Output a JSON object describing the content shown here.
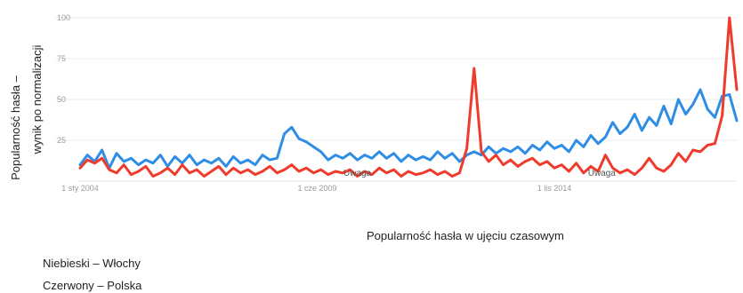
{
  "chart_data": {
    "type": "line",
    "title": "",
    "xlabel": "Popularność hasła w ujęciu czasowym",
    "ylabel_lines": [
      "Popularność hasła –",
      "wynik po normalizacji"
    ],
    "ylim": [
      0,
      100
    ],
    "yticks": [
      "100",
      "75",
      "50",
      "25"
    ],
    "x_range": [
      "2004-01",
      "2019-01"
    ],
    "xticks": [
      {
        "date": "2004-01",
        "label": "1 sty 2004"
      },
      {
        "date": "2009-06",
        "label": "1 cze 2009"
      },
      {
        "date": "2014-11",
        "label": "1 lis 2014"
      }
    ],
    "grid": true,
    "annotations": [
      {
        "date": "2010-05",
        "label": "Uwaga"
      },
      {
        "date": "2015-12",
        "label": "Uwaga"
      }
    ],
    "series": [
      {
        "name": "Włochy",
        "color": "#2f8de4",
        "points": [
          [
            "2004-01",
            10
          ],
          [
            "2004-03",
            16
          ],
          [
            "2004-05",
            12
          ],
          [
            "2004-07",
            19
          ],
          [
            "2004-09",
            8
          ],
          [
            "2004-11",
            17
          ],
          [
            "2005-01",
            12
          ],
          [
            "2005-03",
            14
          ],
          [
            "2005-05",
            10
          ],
          [
            "2005-07",
            13
          ],
          [
            "2005-09",
            11
          ],
          [
            "2005-11",
            16
          ],
          [
            "2006-01",
            9
          ],
          [
            "2006-03",
            15
          ],
          [
            "2006-05",
            11
          ],
          [
            "2006-07",
            16
          ],
          [
            "2006-09",
            10
          ],
          [
            "2006-11",
            13
          ],
          [
            "2007-01",
            11
          ],
          [
            "2007-03",
            14
          ],
          [
            "2007-05",
            9
          ],
          [
            "2007-07",
            15
          ],
          [
            "2007-09",
            11
          ],
          [
            "2007-11",
            13
          ],
          [
            "2008-01",
            10
          ],
          [
            "2008-03",
            16
          ],
          [
            "2008-05",
            13
          ],
          [
            "2008-07",
            14
          ],
          [
            "2008-09",
            29
          ],
          [
            "2008-11",
            33
          ],
          [
            "2009-01",
            26
          ],
          [
            "2009-03",
            24
          ],
          [
            "2009-05",
            21
          ],
          [
            "2009-07",
            18
          ],
          [
            "2009-09",
            13
          ],
          [
            "2009-11",
            16
          ],
          [
            "2010-01",
            14
          ],
          [
            "2010-03",
            17
          ],
          [
            "2010-05",
            13
          ],
          [
            "2010-07",
            16
          ],
          [
            "2010-09",
            14
          ],
          [
            "2010-11",
            18
          ],
          [
            "2011-01",
            14
          ],
          [
            "2011-03",
            17
          ],
          [
            "2011-05",
            12
          ],
          [
            "2011-07",
            16
          ],
          [
            "2011-09",
            13
          ],
          [
            "2011-11",
            15
          ],
          [
            "2012-01",
            13
          ],
          [
            "2012-03",
            18
          ],
          [
            "2012-05",
            14
          ],
          [
            "2012-07",
            17
          ],
          [
            "2012-09",
            12
          ],
          [
            "2012-11",
            16
          ],
          [
            "2013-01",
            18
          ],
          [
            "2013-03",
            16
          ],
          [
            "2013-05",
            21
          ],
          [
            "2013-07",
            17
          ],
          [
            "2013-09",
            20
          ],
          [
            "2013-11",
            18
          ],
          [
            "2014-01",
            21
          ],
          [
            "2014-03",
            17
          ],
          [
            "2014-05",
            22
          ],
          [
            "2014-07",
            19
          ],
          [
            "2014-09",
            24
          ],
          [
            "2014-11",
            20
          ],
          [
            "2015-01",
            22
          ],
          [
            "2015-03",
            18
          ],
          [
            "2015-05",
            25
          ],
          [
            "2015-07",
            21
          ],
          [
            "2015-09",
            28
          ],
          [
            "2015-11",
            23
          ],
          [
            "2016-01",
            27
          ],
          [
            "2016-03",
            36
          ],
          [
            "2016-05",
            29
          ],
          [
            "2016-07",
            33
          ],
          [
            "2016-09",
            41
          ],
          [
            "2016-11",
            31
          ],
          [
            "2017-01",
            39
          ],
          [
            "2017-03",
            34
          ],
          [
            "2017-05",
            46
          ],
          [
            "2017-07",
            35
          ],
          [
            "2017-09",
            50
          ],
          [
            "2017-11",
            41
          ],
          [
            "2018-01",
            47
          ],
          [
            "2018-03",
            56
          ],
          [
            "2018-05",
            44
          ],
          [
            "2018-07",
            39
          ],
          [
            "2018-09",
            52
          ],
          [
            "2018-11",
            53
          ],
          [
            "2019-01",
            37
          ]
        ]
      },
      {
        "name": "Polska",
        "color": "#ef3b2c",
        "points": [
          [
            "2004-01",
            8
          ],
          [
            "2004-03",
            13
          ],
          [
            "2004-05",
            11
          ],
          [
            "2004-07",
            14
          ],
          [
            "2004-09",
            7
          ],
          [
            "2004-11",
            5
          ],
          [
            "2005-01",
            10
          ],
          [
            "2005-03",
            4
          ],
          [
            "2005-05",
            6
          ],
          [
            "2005-07",
            9
          ],
          [
            "2005-09",
            3
          ],
          [
            "2005-11",
            5
          ],
          [
            "2006-01",
            8
          ],
          [
            "2006-03",
            4
          ],
          [
            "2006-05",
            10
          ],
          [
            "2006-07",
            5
          ],
          [
            "2006-09",
            7
          ],
          [
            "2006-11",
            3
          ],
          [
            "2007-01",
            6
          ],
          [
            "2007-03",
            9
          ],
          [
            "2007-05",
            4
          ],
          [
            "2007-07",
            8
          ],
          [
            "2007-09",
            5
          ],
          [
            "2007-11",
            7
          ],
          [
            "2008-01",
            4
          ],
          [
            "2008-03",
            6
          ],
          [
            "2008-05",
            9
          ],
          [
            "2008-07",
            5
          ],
          [
            "2008-09",
            7
          ],
          [
            "2008-11",
            10
          ],
          [
            "2009-01",
            6
          ],
          [
            "2009-03",
            8
          ],
          [
            "2009-05",
            5
          ],
          [
            "2009-07",
            7
          ],
          [
            "2009-09",
            4
          ],
          [
            "2009-11",
            6
          ],
          [
            "2010-01",
            5
          ],
          [
            "2010-03",
            7
          ],
          [
            "2010-05",
            3
          ],
          [
            "2010-07",
            6
          ],
          [
            "2010-09",
            4
          ],
          [
            "2010-11",
            8
          ],
          [
            "2011-01",
            5
          ],
          [
            "2011-03",
            7
          ],
          [
            "2011-05",
            3
          ],
          [
            "2011-07",
            6
          ],
          [
            "2011-09",
            4
          ],
          [
            "2011-11",
            5
          ],
          [
            "2012-01",
            7
          ],
          [
            "2012-03",
            4
          ],
          [
            "2012-05",
            6
          ],
          [
            "2012-07",
            3
          ],
          [
            "2012-09",
            5
          ],
          [
            "2012-11",
            20
          ],
          [
            "2013-01",
            69
          ],
          [
            "2013-03",
            18
          ],
          [
            "2013-05",
            12
          ],
          [
            "2013-07",
            16
          ],
          [
            "2013-09",
            10
          ],
          [
            "2013-11",
            13
          ],
          [
            "2014-01",
            9
          ],
          [
            "2014-03",
            12
          ],
          [
            "2014-05",
            14
          ],
          [
            "2014-07",
            10
          ],
          [
            "2014-09",
            12
          ],
          [
            "2014-11",
            8
          ],
          [
            "2015-01",
            10
          ],
          [
            "2015-03",
            6
          ],
          [
            "2015-05",
            11
          ],
          [
            "2015-07",
            5
          ],
          [
            "2015-09",
            9
          ],
          [
            "2015-11",
            6
          ],
          [
            "2016-01",
            16
          ],
          [
            "2016-03",
            8
          ],
          [
            "2016-05",
            5
          ],
          [
            "2016-07",
            7
          ],
          [
            "2016-09",
            4
          ],
          [
            "2016-11",
            8
          ],
          [
            "2017-01",
            14
          ],
          [
            "2017-03",
            8
          ],
          [
            "2017-05",
            6
          ],
          [
            "2017-07",
            10
          ],
          [
            "2017-09",
            17
          ],
          [
            "2017-11",
            12
          ],
          [
            "2018-01",
            19
          ],
          [
            "2018-03",
            18
          ],
          [
            "2018-05",
            22
          ],
          [
            "2018-07",
            23
          ],
          [
            "2018-09",
            40
          ],
          [
            "2018-11",
            100
          ],
          [
            "2019-01",
            56
          ]
        ]
      }
    ]
  },
  "legend": [
    {
      "label": "Niebieski",
      "dash": "–",
      "country": "Włochy"
    },
    {
      "label": "Czerwony",
      "dash": "–",
      "country": "Polska"
    }
  ]
}
